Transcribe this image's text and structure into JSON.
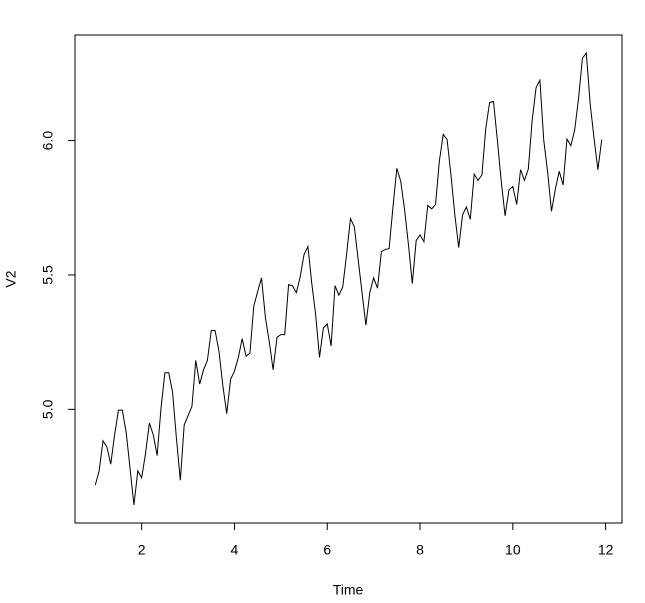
{
  "chart_data": {
    "type": "line",
    "xlabel": "Time",
    "ylabel": "V2",
    "x": [
      1,
      1.0833,
      1.1667,
      1.25,
      1.3333,
      1.4167,
      1.5,
      1.5833,
      1.6667,
      1.75,
      1.8333,
      1.9167,
      2,
      2.0833,
      2.1667,
      2.25,
      2.3333,
      2.4167,
      2.5,
      2.5833,
      2.6667,
      2.75,
      2.8333,
      2.9167,
      3,
      3.0833,
      3.1667,
      3.25,
      3.3333,
      3.4167,
      3.5,
      3.5833,
      3.6667,
      3.75,
      3.8333,
      3.9167,
      4,
      4.0833,
      4.1667,
      4.25,
      4.3333,
      4.4167,
      4.5,
      4.5833,
      4.6667,
      4.75,
      4.8333,
      4.9167,
      5,
      5.0833,
      5.1667,
      5.25,
      5.3333,
      5.4167,
      5.5,
      5.5833,
      5.6667,
      5.75,
      5.8333,
      5.9167,
      6,
      6.0833,
      6.1667,
      6.25,
      6.3333,
      6.4167,
      6.5,
      6.5833,
      6.6667,
      6.75,
      6.8333,
      6.9167,
      7,
      7.0833,
      7.1667,
      7.25,
      7.3333,
      7.4167,
      7.5,
      7.5833,
      7.6667,
      7.75,
      7.8333,
      7.9167,
      8,
      8.0833,
      8.1667,
      8.25,
      8.3333,
      8.4167,
      8.5,
      8.5833,
      8.6667,
      8.75,
      8.8333,
      8.9167,
      9,
      9.0833,
      9.1667,
      9.25,
      9.3333,
      9.4167,
      9.5,
      9.5833,
      9.6667,
      9.75,
      9.8333,
      9.9167,
      10,
      10.0833,
      10.1667,
      10.25,
      10.3333,
      10.4167,
      10.5,
      10.5833,
      10.6667,
      10.75,
      10.8333,
      10.9167,
      11,
      11.0833,
      11.1667,
      11.25,
      11.3333,
      11.4167,
      11.5,
      11.5833,
      11.6667,
      11.75,
      11.8333,
      11.9167
    ],
    "series": [
      {
        "color": "#000000",
        "values": [
          4.718,
          4.771,
          4.883,
          4.86,
          4.796,
          4.905,
          4.997,
          4.997,
          4.913,
          4.779,
          4.644,
          4.771,
          4.745,
          4.836,
          4.949,
          4.905,
          4.828,
          5.004,
          5.136,
          5.136,
          5.063,
          4.89,
          4.736,
          4.942,
          4.977,
          5.011,
          5.182,
          5.094,
          5.147,
          5.182,
          5.293,
          5.293,
          5.215,
          5.088,
          4.984,
          5.112,
          5.142,
          5.193,
          5.263,
          5.198,
          5.209,
          5.384,
          5.438,
          5.489,
          5.342,
          5.252,
          5.147,
          5.268,
          5.278,
          5.278,
          5.464,
          5.46,
          5.434,
          5.493,
          5.576,
          5.606,
          5.468,
          5.352,
          5.193,
          5.303,
          5.318,
          5.236,
          5.46,
          5.425,
          5.455,
          5.576,
          5.71,
          5.68,
          5.557,
          5.434,
          5.313,
          5.434,
          5.489,
          5.451,
          5.587,
          5.595,
          5.598,
          5.753,
          5.897,
          5.849,
          5.743,
          5.613,
          5.468,
          5.628,
          5.649,
          5.624,
          5.759,
          5.746,
          5.762,
          5.924,
          6.023,
          6.004,
          5.872,
          5.724,
          5.602,
          5.724,
          5.753,
          5.707,
          5.875,
          5.852,
          5.872,
          6.045,
          6.142,
          6.146,
          6.001,
          5.849,
          5.72,
          5.817,
          5.829,
          5.762,
          5.892,
          5.852,
          5.894,
          6.075,
          6.196,
          6.225,
          6.001,
          5.883,
          5.737,
          5.82,
          5.886,
          5.835,
          6.006,
          5.981,
          6.04,
          6.157,
          6.306,
          6.326,
          6.138,
          6.009,
          5.892,
          6.004
        ]
      }
    ],
    "xlim": [
      0.563,
      12.353
    ],
    "ylim": [
      4.577,
      6.393
    ],
    "xticks": [
      2,
      4,
      6,
      8,
      10,
      12
    ],
    "yticks": [
      {
        "value": 5,
        "label": "5.0"
      },
      {
        "value": 5.5,
        "label": "5.5"
      },
      {
        "value": 6,
        "label": "6.0"
      }
    ]
  }
}
